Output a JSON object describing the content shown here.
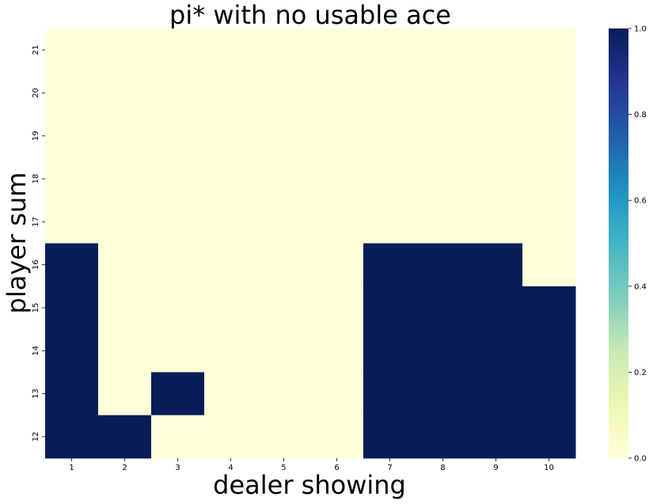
{
  "chart_data": {
    "type": "heatmap",
    "title": "pi* with no usable ace",
    "xlabel": "dealer showing",
    "ylabel": "player sum",
    "x_categories": [
      "1",
      "2",
      "3",
      "4",
      "5",
      "6",
      "7",
      "8",
      "9",
      "10"
    ],
    "y_categories": [
      "21",
      "20",
      "19",
      "18",
      "17",
      "16",
      "15",
      "14",
      "13",
      "12"
    ],
    "values": [
      [
        0,
        0,
        0,
        0,
        0,
        0,
        0,
        0,
        0,
        0
      ],
      [
        0,
        0,
        0,
        0,
        0,
        0,
        0,
        0,
        0,
        0
      ],
      [
        0,
        0,
        0,
        0,
        0,
        0,
        0,
        0,
        0,
        0
      ],
      [
        0,
        0,
        0,
        0,
        0,
        0,
        0,
        0,
        0,
        0
      ],
      [
        0,
        0,
        0,
        0,
        0,
        0,
        0,
        0,
        0,
        0
      ],
      [
        1,
        0,
        0,
        0,
        0,
        0,
        1,
        1,
        1,
        0
      ],
      [
        1,
        0,
        0,
        0,
        0,
        0,
        1,
        1,
        1,
        1
      ],
      [
        1,
        0,
        0,
        0,
        0,
        0,
        1,
        1,
        1,
        1
      ],
      [
        1,
        0,
        1,
        0,
        0,
        0,
        1,
        1,
        1,
        1
      ],
      [
        1,
        1,
        0,
        0,
        0,
        0,
        1,
        1,
        1,
        1
      ]
    ],
    "colorbar": {
      "min": 0.0,
      "max": 1.0,
      "ticks": [
        "0.0",
        "0.2",
        "0.4",
        "0.6",
        "0.8",
        "1.0"
      ],
      "colormap": "YlGnBu",
      "low_color": "#ffffd9",
      "high_color": "#081d58"
    }
  }
}
